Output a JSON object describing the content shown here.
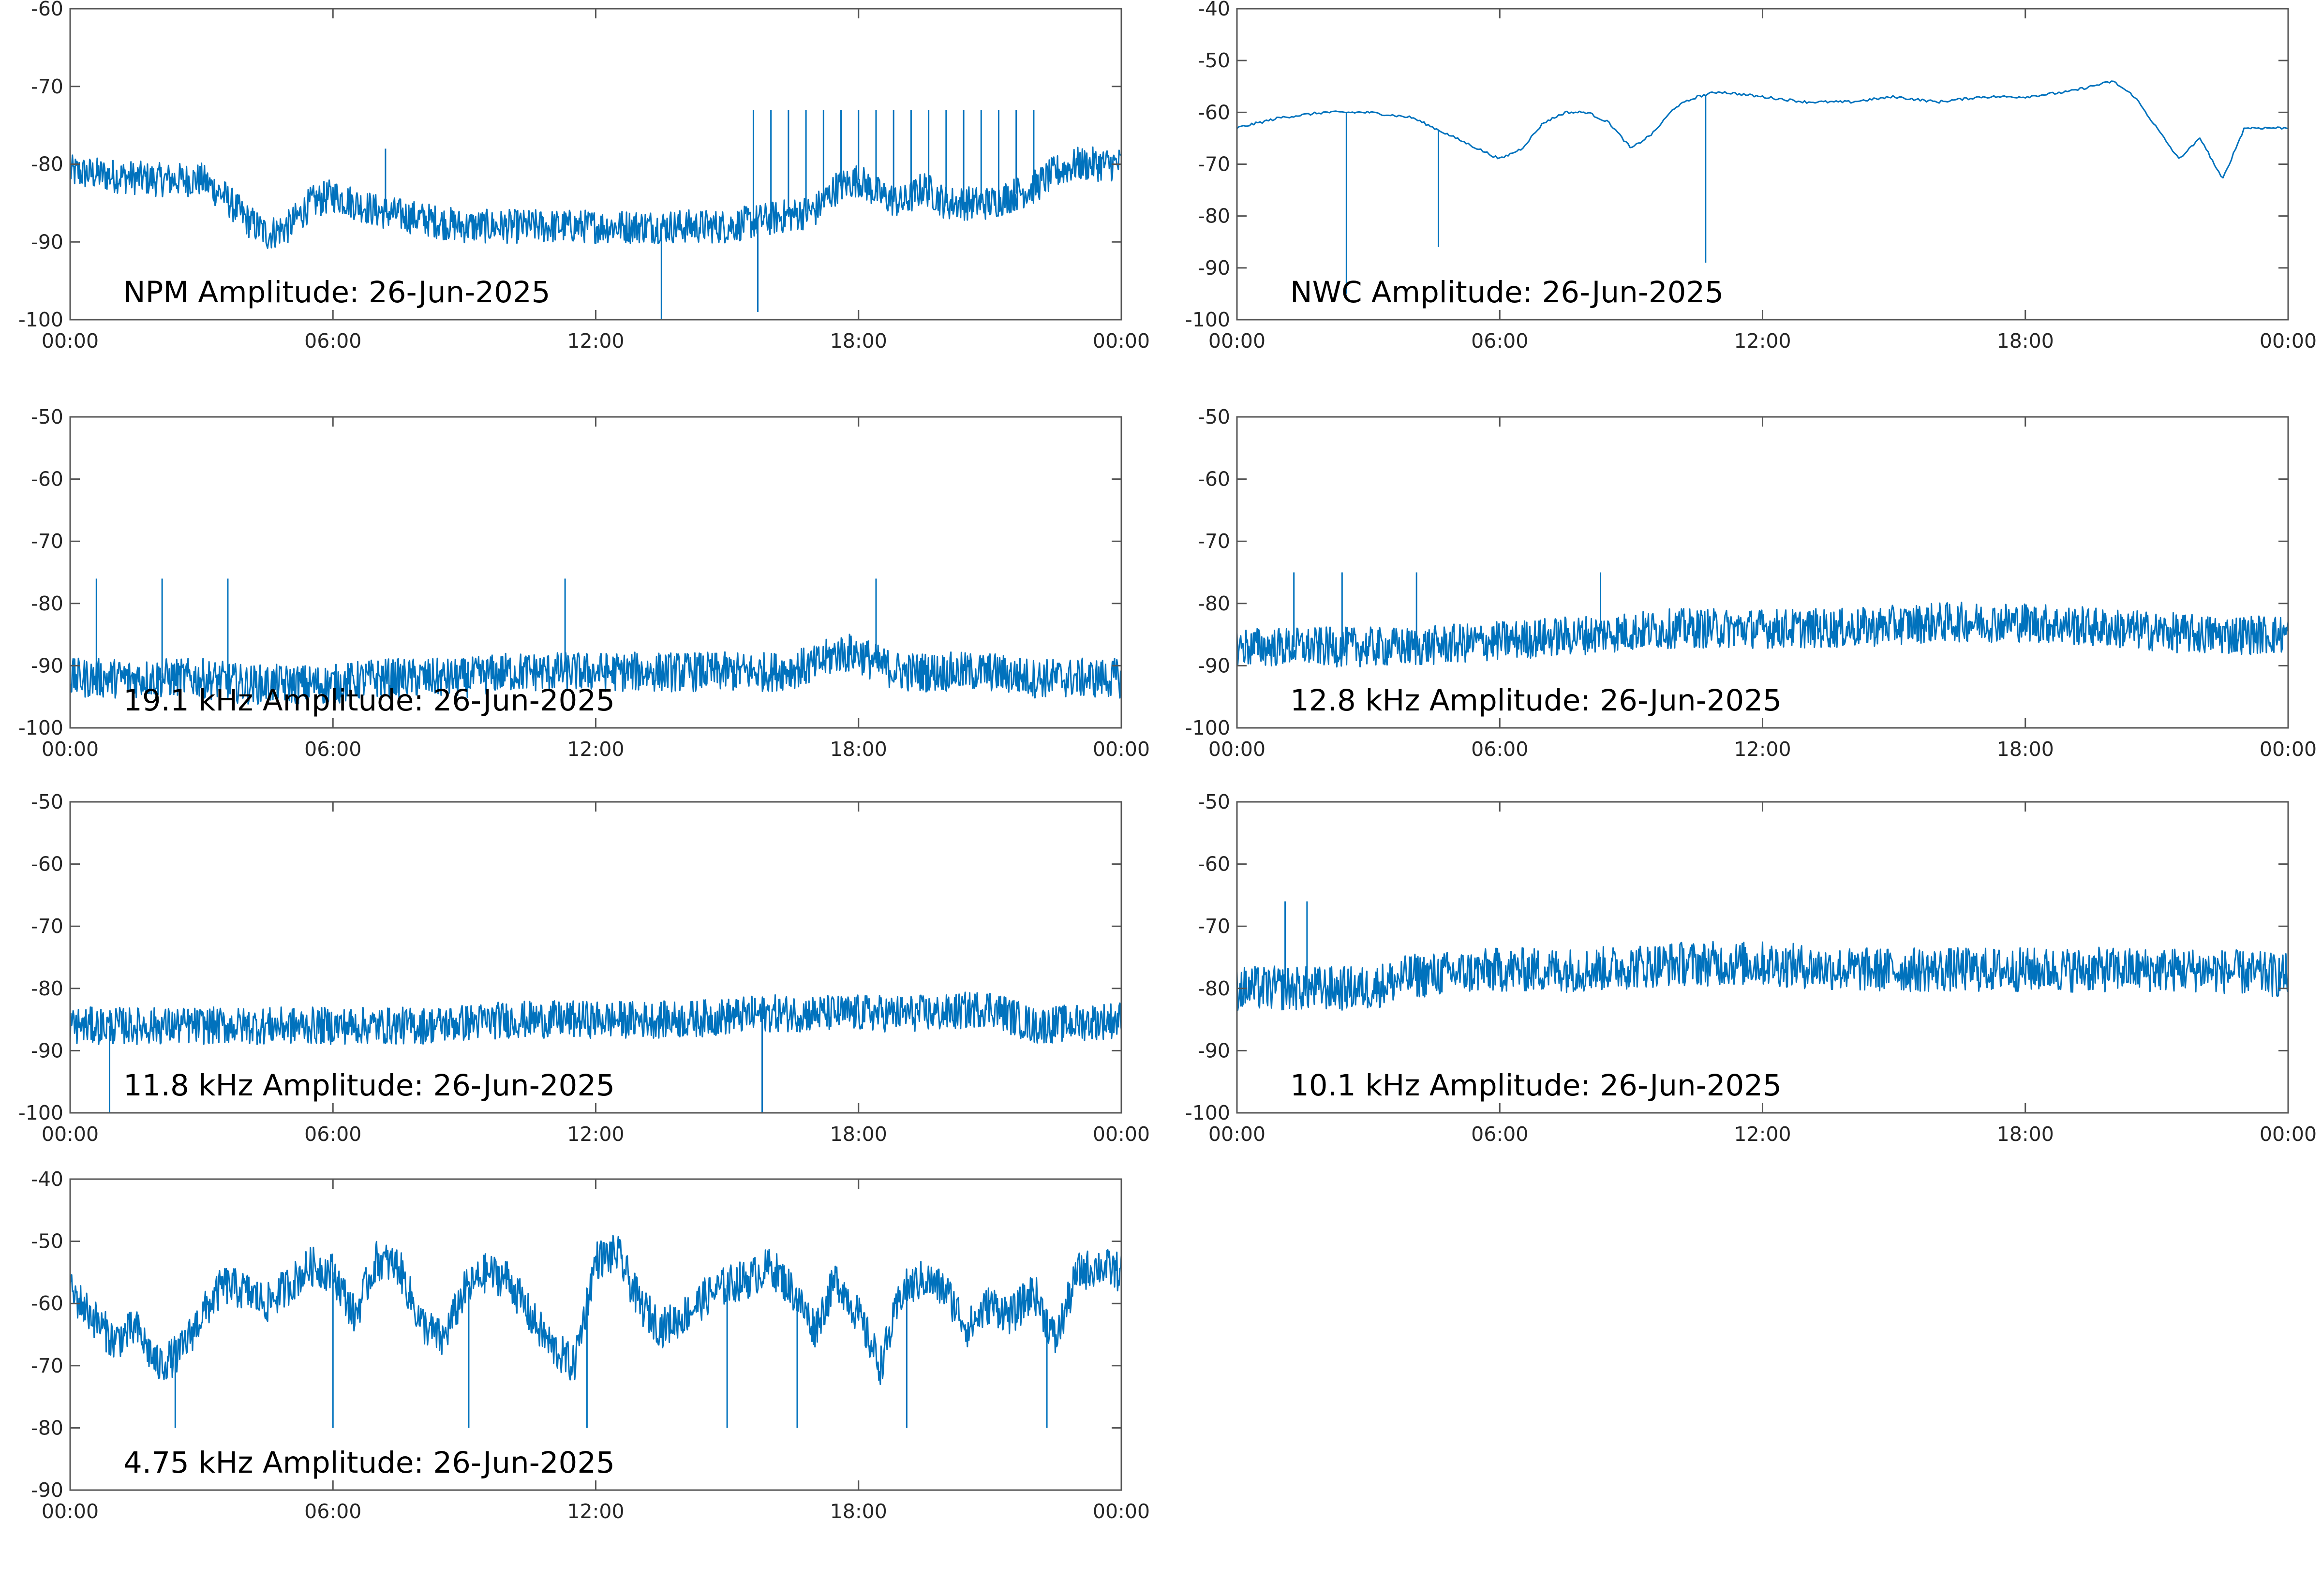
{
  "figure": {
    "line_color": "#0072BD",
    "x_tick_labels": [
      "00:00",
      "06:00",
      "12:00",
      "18:00",
      "00:00"
    ]
  },
  "chart_data": [
    {
      "type": "line",
      "title": "NPM Amplitude: 26-Jun-2025",
      "x_unit": "hours after 00:00 on 26-Jun-2025",
      "xlim": [
        0,
        24
      ],
      "ylim": [
        -100,
        -60
      ],
      "yticks": [
        -100,
        -90,
        -80,
        -70,
        -60
      ],
      "series": [
        {
          "x": [
            0,
            1,
            2,
            3,
            3.5,
            4,
            4.5,
            5,
            5.5,
            6,
            6.5,
            7,
            8,
            9,
            10,
            11,
            12,
            13,
            14,
            15,
            16,
            17,
            17.5,
            18,
            18.5,
            19,
            19.5,
            20,
            20.5,
            21,
            21.5,
            22,
            22.5,
            23,
            24
          ],
          "y": [
            -81,
            -81.5,
            -82,
            -82,
            -84,
            -87,
            -89,
            -88,
            -85,
            -84,
            -85,
            -86,
            -87,
            -88,
            -88,
            -88,
            -88,
            -88,
            -88,
            -88,
            -87,
            -86,
            -83,
            -82,
            -84,
            -85,
            -83,
            -85,
            -85,
            -85,
            -84,
            -83,
            -81,
            -80,
            -80
          ]
        }
      ],
      "spikes": [
        {
          "x": [
            15.6,
            16.0,
            16.4,
            16.8,
            17.2,
            17.6,
            18.0,
            18.4,
            18.8,
            19.2,
            19.6,
            20.0,
            20.4,
            20.8,
            21.2,
            21.6,
            22.0
          ],
          "y_top": -73
        },
        {
          "x": [
            13.5
          ],
          "y_top": -100
        },
        {
          "x": [
            15.7
          ],
          "y_top": -99
        },
        {
          "x": [
            7.2
          ],
          "y_top": -78
        }
      ]
    },
    {
      "type": "line",
      "title": "NWC Amplitude: 26-Jun-2025",
      "x_unit": "hours after 00:00 on 26-Jun-2025",
      "xlim": [
        0,
        24
      ],
      "ylim": [
        -100,
        -40
      ],
      "yticks": [
        -100,
        -90,
        -80,
        -70,
        -60,
        -50,
        -40
      ],
      "series": [
        {
          "x": [
            0,
            1,
            2,
            3,
            4,
            5,
            5.5,
            6,
            6.5,
            7,
            7.5,
            8,
            8.5,
            9,
            9.5,
            10,
            10.5,
            11,
            12,
            13,
            14,
            15,
            16,
            17,
            18,
            19,
            19.5,
            20,
            20.5,
            21,
            21.5,
            22,
            22.5,
            23,
            24
          ],
          "y": [
            -63,
            -61,
            -60,
            -60,
            -61,
            -65,
            -67,
            -69,
            -67,
            -62,
            -60,
            -60,
            -62,
            -67,
            -64,
            -59,
            -57,
            -56,
            -57,
            -58,
            -58,
            -57,
            -58,
            -57,
            -57,
            -56,
            -55,
            -54,
            -57,
            -63,
            -69,
            -65,
            -73,
            -63,
            -63
          ]
        }
      ],
      "spikes": [
        {
          "x": [
            2.5
          ],
          "y_top": -95
        },
        {
          "x": [
            4.6
          ],
          "y_top": -86
        },
        {
          "x": [
            10.7
          ],
          "y_top": -89
        }
      ]
    },
    {
      "type": "line",
      "title": "19.1 kHz Amplitude: 26-Jun-2025",
      "x_unit": "hours after 00:00 on 26-Jun-2025",
      "xlim": [
        0,
        24
      ],
      "ylim": [
        -100,
        -50
      ],
      "yticks": [
        -100,
        -90,
        -80,
        -70,
        -60,
        -50
      ],
      "series": [
        {
          "x": [
            0,
            1,
            2,
            3,
            4,
            5,
            6,
            7,
            8,
            9,
            10,
            11,
            12,
            13,
            14,
            15,
            16,
            17,
            17.5,
            18,
            18.5,
            19,
            20,
            21,
            22,
            23,
            24
          ],
          "y": [
            -92,
            -92,
            -92,
            -92,
            -93,
            -93,
            -93,
            -92,
            -92,
            -92,
            -91,
            -91,
            -91,
            -91,
            -91,
            -91,
            -91,
            -90,
            -88,
            -88,
            -90,
            -91,
            -91,
            -91,
            -92,
            -92,
            -92
          ]
        }
      ],
      "spikes": [
        {
          "x": [
            0.6,
            2.1,
            3.6,
            11.3,
            18.4
          ],
          "y_top": -76
        }
      ]
    },
    {
      "type": "line",
      "title": "12.8 kHz Amplitude: 26-Jun-2025",
      "x_unit": "hours after 00:00 on 26-Jun-2025",
      "xlim": [
        0,
        24
      ],
      "ylim": [
        -100,
        -50
      ],
      "yticks": [
        -100,
        -90,
        -80,
        -70,
        -60,
        -50
      ],
      "series": [
        {
          "x": [
            0,
            2,
            4,
            6,
            8,
            10,
            12,
            14,
            16,
            18,
            20,
            22,
            24
          ],
          "y": [
            -87,
            -87,
            -87,
            -86,
            -85,
            -84,
            -84,
            -84,
            -83,
            -83,
            -84,
            -85,
            -85
          ]
        }
      ],
      "spikes": [
        {
          "x": [
            1.3,
            2.4,
            4.1,
            8.3
          ],
          "y_top": -75
        }
      ]
    },
    {
      "type": "line",
      "title": "11.8 kHz Amplitude: 26-Jun-2025",
      "x_unit": "hours after 00:00 on 26-Jun-2025",
      "xlim": [
        0,
        24
      ],
      "ylim": [
        -100,
        -50
      ],
      "yticks": [
        -100,
        -90,
        -80,
        -70,
        -60,
        -50
      ],
      "series": [
        {
          "x": [
            0,
            2,
            4,
            6,
            8,
            10,
            12,
            14,
            16,
            18,
            20,
            21,
            22,
            24
          ],
          "y": [
            -86,
            -86,
            -86,
            -86,
            -86,
            -85,
            -85,
            -85,
            -84,
            -84,
            -84,
            -83,
            -86,
            -85
          ]
        }
      ],
      "spikes": [
        {
          "x": [
            0.9,
            15.8
          ],
          "y_top": -100
        }
      ]
    },
    {
      "type": "line",
      "title": "10.1 kHz Amplitude: 26-Jun-2025",
      "x_unit": "hours after 00:00 on 26-Jun-2025",
      "xlim": [
        0,
        24
      ],
      "ylim": [
        -100,
        -50
      ],
      "yticks": [
        -100,
        -90,
        -80,
        -70,
        -60,
        -50
      ],
      "series": [
        {
          "x": [
            0,
            1,
            2,
            3,
            3.5,
            4,
            6,
            8,
            10,
            12,
            14,
            16,
            18,
            20,
            22,
            24
          ],
          "y": [
            -80,
            -80,
            -80,
            -80,
            -79,
            -78,
            -77,
            -77,
            -76,
            -76,
            -77,
            -77,
            -77,
            -77,
            -77,
            -78
          ]
        }
      ],
      "spikes": [
        {
          "x": [
            1.1,
            1.6
          ],
          "y_top": -66
        }
      ]
    },
    {
      "type": "line",
      "title": "4.75 kHz Amplitude: 26-Jun-2025",
      "x_unit": "hours after 00:00 on 26-Jun-2025",
      "xlim": [
        0,
        24
      ],
      "ylim": [
        -90,
        -40
      ],
      "yticks": [
        -90,
        -80,
        -70,
        -60,
        -50,
        -40
      ],
      "series": [
        {
          "x": [
            0,
            0.5,
            1,
            1.5,
            2,
            2.5,
            3,
            3.5,
            4,
            4.5,
            5,
            5.5,
            6,
            6.5,
            7,
            7.5,
            8,
            8.5,
            9,
            9.5,
            10,
            10.5,
            11,
            11.5,
            12,
            12.5,
            13,
            13.5,
            14,
            14.5,
            15,
            15.5,
            16,
            16.5,
            17,
            17.5,
            18,
            18.5,
            19,
            19.5,
            20,
            20.5,
            21,
            21.5,
            22,
            22.5,
            23,
            23.5,
            24
          ],
          "y": [
            -58,
            -62,
            -66,
            -64,
            -70,
            -68,
            -62,
            -57,
            -58,
            -60,
            -57,
            -54,
            -55,
            -62,
            -53,
            -54,
            -63,
            -66,
            -58,
            -55,
            -56,
            -62,
            -67,
            -70,
            -53,
            -52,
            -60,
            -64,
            -62,
            -59,
            -57,
            -56,
            -54,
            -58,
            -64,
            -56,
            -62,
            -70,
            -58,
            -56,
            -58,
            -64,
            -60,
            -62,
            -58,
            -66,
            -55,
            -54,
            -55
          ]
        }
      ],
      "spikes": [
        {
          "x": [
            2.4,
            6.0,
            9.1,
            11.8,
            15.0,
            16.6,
            19.1,
            22.3
          ],
          "y_top": -80
        }
      ]
    }
  ]
}
